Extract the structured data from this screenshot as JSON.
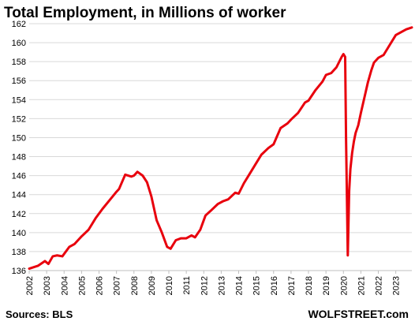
{
  "chart_data": {
    "type": "line",
    "title": "Total Employment, in Millions of worker",
    "xlabel": "",
    "ylabel": "",
    "xlim": [
      2002,
      2023.92
    ],
    "ylim": [
      136,
      162
    ],
    "y_ticks": [
      "136",
      "138",
      "140",
      "142",
      "144",
      "146",
      "148",
      "150",
      "152",
      "154",
      "156",
      "158",
      "160",
      "162"
    ],
    "x_ticks": [
      "2002",
      "2003",
      "2004",
      "2005",
      "2006",
      "2007",
      "2008",
      "2009",
      "2010",
      "2011",
      "2012",
      "2013",
      "2014",
      "2015",
      "2016",
      "2017",
      "2018",
      "2019",
      "2020",
      "2021",
      "2022",
      "2023"
    ],
    "grid": "horizontal",
    "line_color": "#e8000d",
    "series": [
      {
        "x": [
          2002.0,
          2002.5,
          2002.9,
          2003.1,
          2003.35,
          2003.6,
          2003.9,
          2004.3,
          2004.6,
          2005.0,
          2005.4,
          2005.8,
          2006.2,
          2006.6,
          2007.0,
          2007.15,
          2007.5,
          2007.85,
          2008.0,
          2008.2,
          2008.5,
          2008.75,
          2009.0,
          2009.3,
          2009.6,
          2009.9,
          2010.1,
          2010.4,
          2010.7,
          2011.0,
          2011.3,
          2011.5,
          2011.8,
          2012.1,
          2012.4,
          2012.8,
          2013.1,
          2013.4,
          2013.8,
          2014.0,
          2014.3,
          2014.6,
          2015.0,
          2015.3,
          2015.7,
          2016.0,
          2016.4,
          2016.8,
          2017.0,
          2017.4,
          2017.8,
          2018.0,
          2018.4,
          2018.8,
          2019.0,
          2019.3,
          2019.6,
          2019.9,
          2020.0,
          2020.1,
          2020.15,
          2020.25,
          2020.33,
          2020.4,
          2020.5,
          2020.6,
          2020.7,
          2020.85,
          2021.0,
          2021.2,
          2021.4,
          2021.6,
          2021.75,
          2021.9,
          2022.0,
          2022.3,
          2022.6,
          2022.9,
          2023.0,
          2023.3,
          2023.6,
          2023.92
        ],
        "y": [
          136.2,
          136.5,
          137.0,
          136.7,
          137.5,
          137.6,
          137.5,
          138.5,
          138.8,
          139.6,
          140.3,
          141.5,
          142.5,
          143.4,
          144.3,
          144.6,
          146.1,
          145.9,
          146.0,
          146.4,
          146.0,
          145.3,
          143.8,
          141.3,
          140.0,
          138.5,
          138.3,
          139.2,
          139.4,
          139.4,
          139.7,
          139.5,
          140.3,
          141.8,
          142.3,
          143.0,
          143.3,
          143.5,
          144.2,
          144.1,
          145.2,
          146.1,
          147.3,
          148.2,
          148.9,
          149.3,
          151.0,
          151.5,
          151.9,
          152.6,
          153.7,
          153.9,
          155.0,
          155.9,
          156.6,
          156.8,
          157.4,
          158.5,
          158.8,
          158.5,
          150.0,
          137.6,
          144.4,
          146.7,
          148.4,
          149.6,
          150.5,
          151.3,
          152.6,
          154.2,
          155.8,
          157.1,
          157.9,
          158.2,
          158.4,
          158.7,
          159.6,
          160.5,
          160.8,
          161.1,
          161.4,
          161.6
        ]
      }
    ]
  },
  "footer": {
    "source": "Sources: BLS",
    "brand": "WOLFSTREET.com"
  }
}
